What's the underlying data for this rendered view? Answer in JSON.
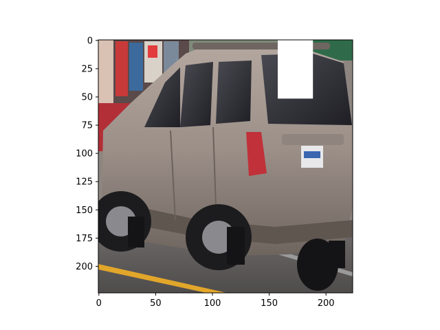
{
  "figure": {
    "image_size": [
      224,
      224
    ],
    "x_ticks": [
      0,
      50,
      100,
      150,
      200
    ],
    "y_ticks": [
      0,
      25,
      50,
      75,
      100,
      125,
      150,
      175,
      200
    ],
    "occlusion_patch": {
      "x0": 158,
      "y0": 0,
      "x1": 189,
      "y1": 52
    }
  }
}
